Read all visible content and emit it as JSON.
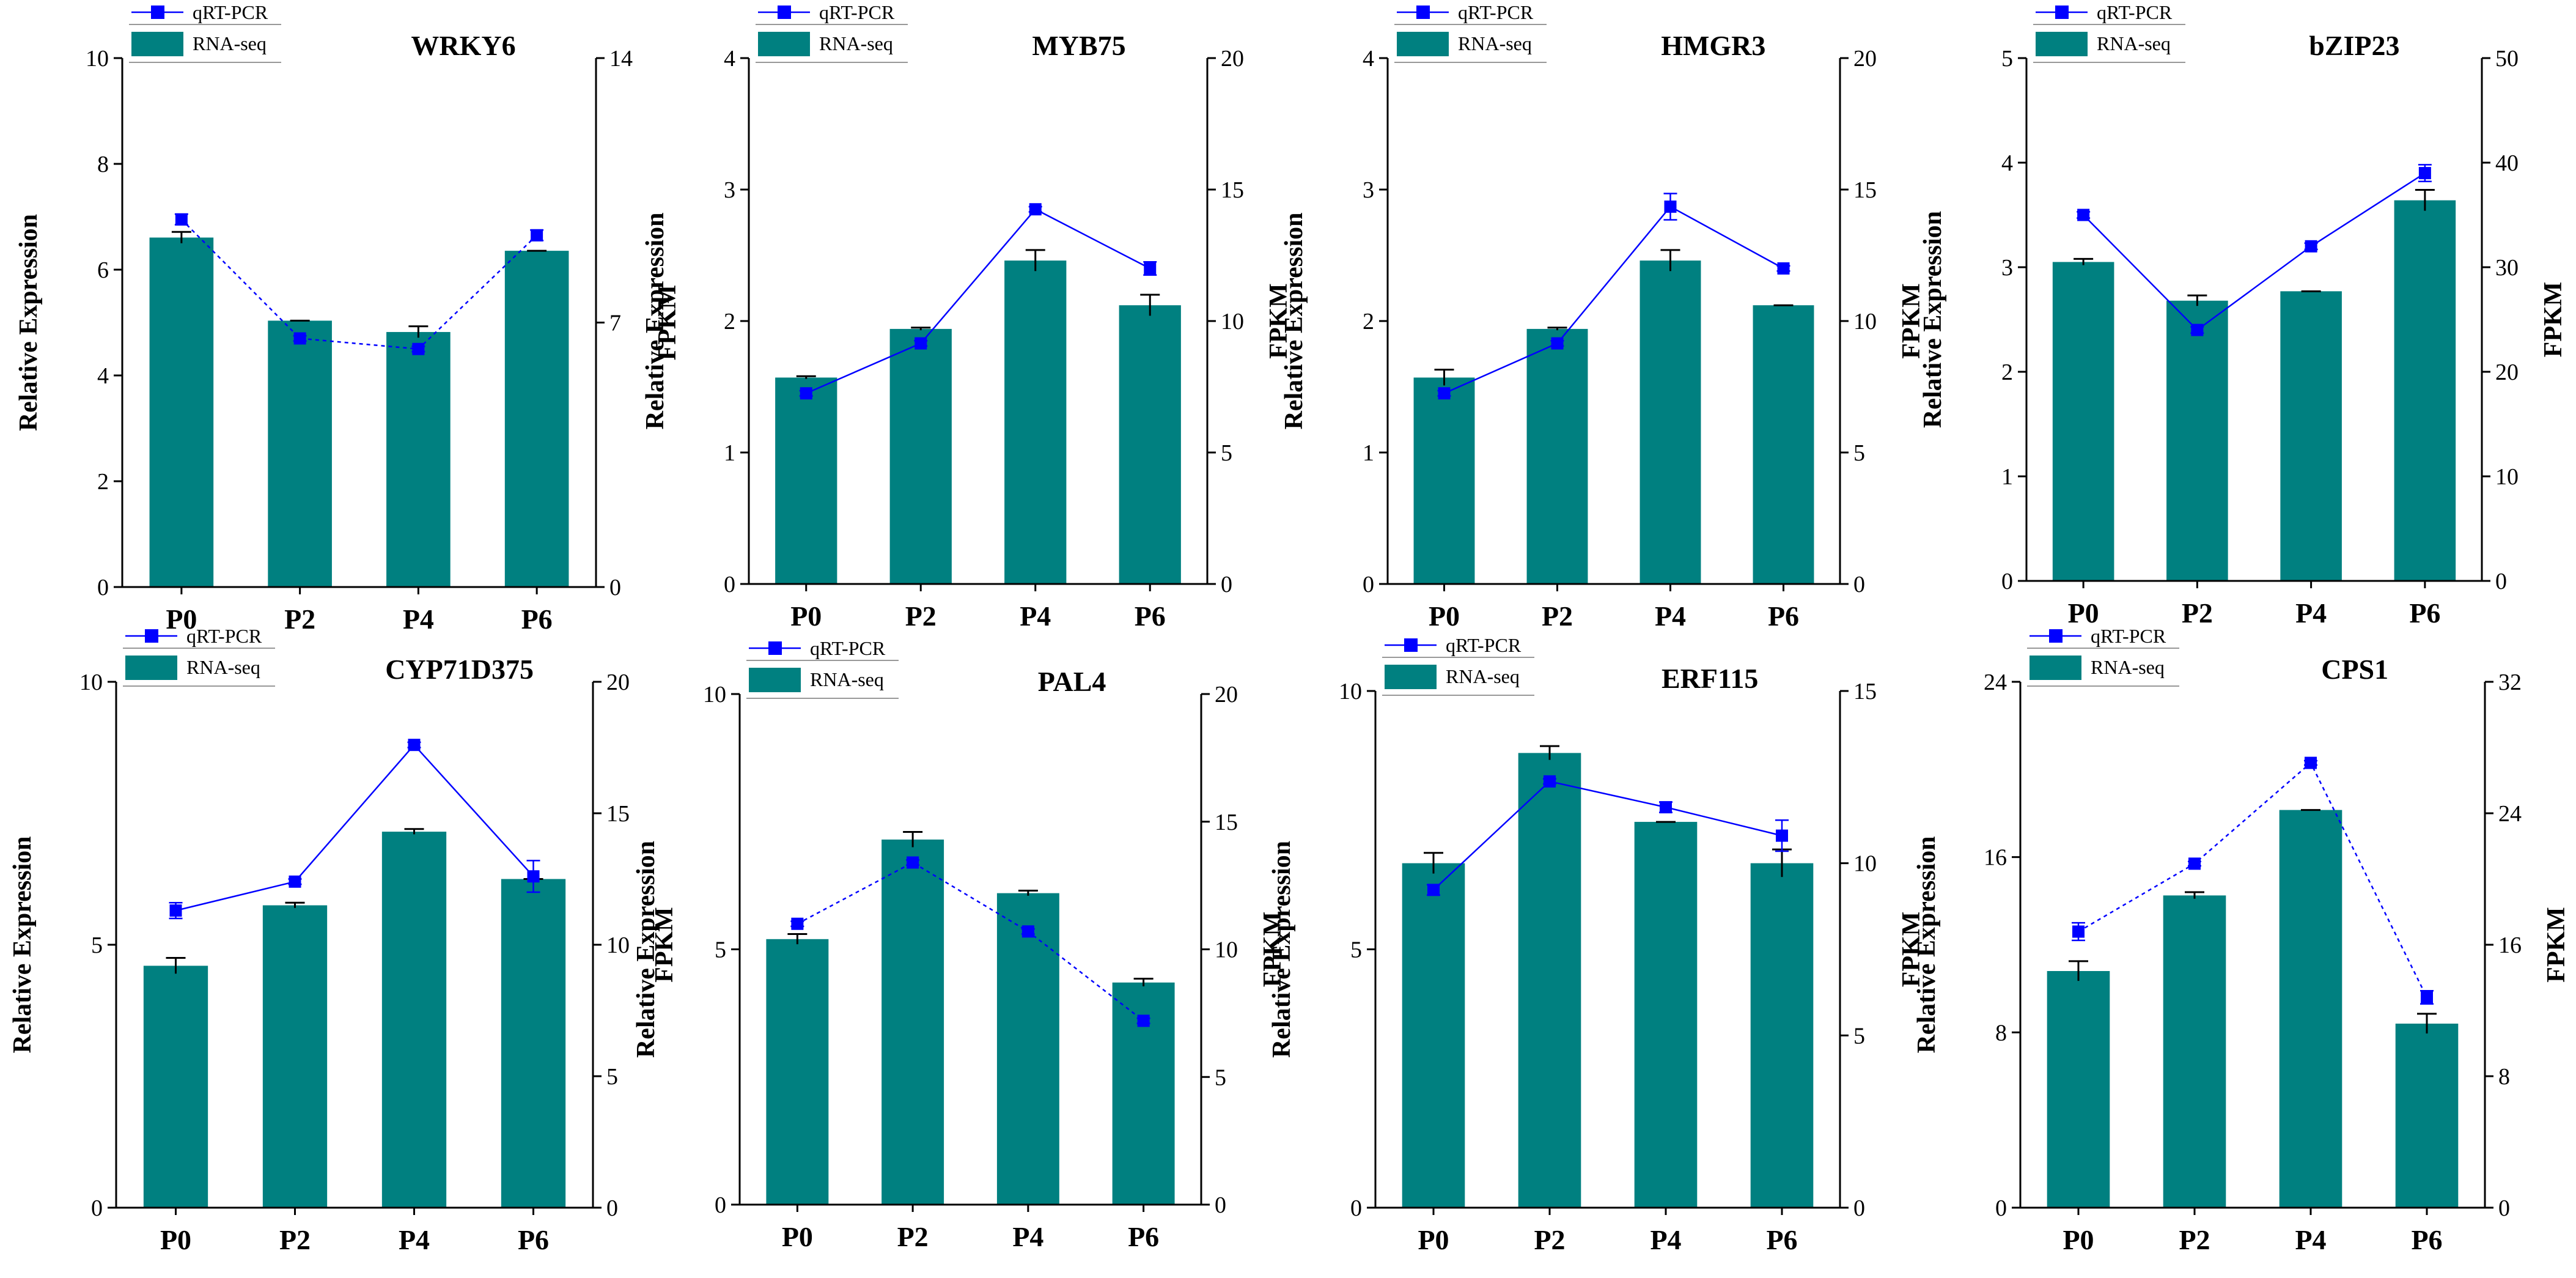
{
  "colors": {
    "bar": "#008080",
    "line": "#0000ff",
    "axis": "#000000",
    "error": "#000000"
  },
  "chart_data": [
    {
      "type": "bar+line",
      "title": "WRKY6",
      "categories": [
        "P0",
        "P2",
        "P4",
        "P6"
      ],
      "ylabel_left": "Relative Expression",
      "ylabel_right": "FPKM",
      "ylim_left": [
        0,
        10
      ],
      "yticks_left": [
        0,
        2,
        4,
        6,
        8,
        10
      ],
      "ytick_labels_left": [
        "0",
        "2",
        "4",
        "6",
        "8",
        "10"
      ],
      "ylim_right": [
        0,
        14
      ],
      "yticks_right": [
        0,
        7,
        14
      ],
      "ytick_labels_right": [
        "0",
        "7",
        "14"
      ],
      "legend": {
        "line": "qRT-PCR",
        "bar": "RNA-seq"
      },
      "bar_series": {
        "name": "RNA-seq",
        "axis": "right",
        "values": [
          9.25,
          7.05,
          6.75,
          8.9
        ],
        "errors": [
          0.15,
          0.0,
          0.15,
          0.0
        ]
      },
      "line_series": {
        "name": "qRT-PCR",
        "axis": "left",
        "values": [
          6.95,
          4.7,
          4.5,
          6.65
        ],
        "errors": [
          0.1,
          0.05,
          0.05,
          0.1
        ]
      },
      "line_dashed": true
    },
    {
      "type": "bar+line",
      "title": "MYB75",
      "categories": [
        "P0",
        "P2",
        "P4",
        "P6"
      ],
      "ylabel_left": "Relative Expression",
      "ylabel_right": "FPKM",
      "ylim_left": [
        0,
        4
      ],
      "yticks_left": [
        0,
        1,
        2,
        3,
        4
      ],
      "ytick_labels_left": [
        "0",
        "1",
        "2",
        "3",
        "4"
      ],
      "ylim_right": [
        0,
        20
      ],
      "yticks_right": [
        0,
        5,
        10,
        15,
        20
      ],
      "ytick_labels_right": [
        "0",
        "5",
        "10",
        "15",
        "20"
      ],
      "legend": {
        "line": "qRT-PCR",
        "bar": "RNA-seq"
      },
      "bar_series": {
        "name": "RNA-seq",
        "axis": "right",
        "values": [
          7.85,
          9.7,
          12.3,
          10.6
        ],
        "errors": [
          0.05,
          0.05,
          0.4,
          0.4
        ]
      },
      "line_series": {
        "name": "qRT-PCR",
        "axis": "left",
        "values": [
          1.45,
          1.83,
          2.85,
          2.4
        ],
        "errors": [
          0.02,
          0.02,
          0.02,
          0.05
        ]
      },
      "line_dashed": false
    },
    {
      "type": "bar+line",
      "title": "HMGR3",
      "categories": [
        "P0",
        "P2",
        "P4",
        "P6"
      ],
      "ylabel_left": "Relative Expression",
      "ylabel_right": "FPKM",
      "ylim_left": [
        0,
        4
      ],
      "yticks_left": [
        0,
        1,
        2,
        3,
        4
      ],
      "ytick_labels_left": [
        "0",
        "1",
        "2",
        "3",
        "4"
      ],
      "ylim_right": [
        0,
        20
      ],
      "yticks_right": [
        0,
        5,
        10,
        15,
        20
      ],
      "ytick_labels_right": [
        "0",
        "5",
        "10",
        "15",
        "20"
      ],
      "legend": {
        "line": "qRT-PCR",
        "bar": "RNA-seq"
      },
      "bar_series": {
        "name": "RNA-seq",
        "axis": "right",
        "values": [
          7.85,
          9.7,
          12.3,
          10.6
        ],
        "errors": [
          0.3,
          0.05,
          0.4,
          0.0
        ]
      },
      "line_series": {
        "name": "qRT-PCR",
        "axis": "left",
        "values": [
          1.45,
          1.83,
          2.87,
          2.4
        ],
        "errors": [
          0.02,
          0.02,
          0.1,
          0.02
        ]
      },
      "line_dashed": false
    },
    {
      "type": "bar+line",
      "title": "bZIP23",
      "categories": [
        "P0",
        "P2",
        "P4",
        "P6"
      ],
      "ylabel_left": "Relative Expression",
      "ylabel_right": "FPKM",
      "ylim_left": [
        0,
        5
      ],
      "yticks_left": [
        0,
        1,
        2,
        3,
        4,
        5
      ],
      "ytick_labels_left": [
        "0",
        "1",
        "2",
        "3",
        "4",
        "5"
      ],
      "ylim_right": [
        0,
        50
      ],
      "yticks_right": [
        0,
        10,
        20,
        30,
        40,
        50
      ],
      "ytick_labels_right": [
        "0",
        "10",
        "20",
        "30",
        "40",
        "50"
      ],
      "legend": {
        "line": "qRT-PCR",
        "bar": "RNA-seq"
      },
      "bar_series": {
        "name": "RNA-seq",
        "axis": "right",
        "values": [
          30.5,
          26.8,
          27.7,
          36.4
        ],
        "errors": [
          0.3,
          0.5,
          0.0,
          1.0
        ]
      },
      "line_series": {
        "name": "qRT-PCR",
        "axis": "left",
        "values": [
          3.5,
          2.4,
          3.2,
          3.9
        ],
        "errors": [
          0.03,
          0.03,
          0.03,
          0.08
        ]
      },
      "line_dashed": false
    },
    {
      "type": "bar+line",
      "title": "CYP71D375",
      "categories": [
        "P0",
        "P2",
        "P4",
        "P6"
      ],
      "ylabel_left": "Relative Expression",
      "ylabel_right": "FPKM",
      "ylim_left": [
        0,
        10
      ],
      "yticks_left": [
        0,
        5,
        10
      ],
      "ytick_labels_left": [
        "0",
        "5",
        "10"
      ],
      "ylim_right": [
        0,
        20
      ],
      "yticks_right": [
        0,
        5,
        10,
        15,
        20
      ],
      "ytick_labels_right": [
        "0",
        "5",
        "10",
        "15",
        "20"
      ],
      "legend": {
        "line": "qRT-PCR",
        "bar": "RNA-seq"
      },
      "bar_series": {
        "name": "RNA-seq",
        "axis": "right",
        "values": [
          9.2,
          11.5,
          14.3,
          12.5
        ],
        "errors": [
          0.3,
          0.1,
          0.1,
          0.0
        ]
      },
      "line_series": {
        "name": "qRT-PCR",
        "axis": "left",
        "values": [
          5.65,
          6.2,
          8.8,
          6.3
        ],
        "errors": [
          0.15,
          0.05,
          0.05,
          0.3
        ]
      },
      "line_dashed": false
    },
    {
      "type": "bar+line",
      "title": "PAL4",
      "categories": [
        "P0",
        "P2",
        "P4",
        "P6"
      ],
      "ylabel_left": "Relative Expression",
      "ylabel_right": "FPKM",
      "ylim_left": [
        0,
        10
      ],
      "yticks_left": [
        0,
        5,
        10
      ],
      "ytick_labels_left": [
        "0",
        "5",
        "10"
      ],
      "ylim_right": [
        0,
        20
      ],
      "yticks_right": [
        0,
        5,
        10,
        15,
        20
      ],
      "ytick_labels_right": [
        "0",
        "5",
        "10",
        "15",
        "20"
      ],
      "legend": {
        "line": "qRT-PCR",
        "bar": "RNA-seq"
      },
      "bar_series": {
        "name": "RNA-seq",
        "axis": "right",
        "values": [
          10.4,
          14.3,
          12.2,
          8.7
        ],
        "errors": [
          0.2,
          0.3,
          0.1,
          0.15
        ]
      },
      "line_series": {
        "name": "qRT-PCR",
        "axis": "left",
        "values": [
          5.5,
          6.7,
          5.35,
          3.6
        ],
        "errors": [
          0.05,
          0.05,
          0.05,
          0.05
        ]
      },
      "line_dashed": true
    },
    {
      "type": "bar+line",
      "title": "ERF115",
      "categories": [
        "P0",
        "P2",
        "P4",
        "P6"
      ],
      "ylabel_left": "Relative Expression",
      "ylabel_right": "FPKM",
      "ylim_left": [
        0,
        10
      ],
      "yticks_left": [
        0,
        5,
        10
      ],
      "ytick_labels_left": [
        "0",
        "5",
        "10"
      ],
      "ylim_right": [
        0,
        15
      ],
      "yticks_right": [
        0,
        5,
        10,
        15
      ],
      "ytick_labels_right": [
        "0",
        "5",
        "10",
        "15"
      ],
      "legend": {
        "line": "qRT-PCR",
        "bar": "RNA-seq"
      },
      "bar_series": {
        "name": "RNA-seq",
        "axis": "right",
        "values": [
          10.0,
          13.2,
          11.2,
          10.0
        ],
        "errors": [
          0.3,
          0.2,
          0.0,
          0.4
        ]
      },
      "line_series": {
        "name": "qRT-PCR",
        "axis": "left",
        "values": [
          6.15,
          8.25,
          7.75,
          7.2
        ],
        "errors": [
          0.1,
          0.05,
          0.1,
          0.3
        ]
      },
      "line_dashed": false
    },
    {
      "type": "bar+line",
      "title": "CPS1",
      "categories": [
        "P0",
        "P2",
        "P4",
        "P6"
      ],
      "ylabel_left": "Relative Expression",
      "ylabel_right": "FPKM",
      "ylim_left": [
        0,
        24
      ],
      "yticks_left": [
        0,
        8,
        16,
        24
      ],
      "ytick_labels_left": [
        "0",
        "8",
        "16",
        "24"
      ],
      "ylim_right": [
        0,
        32
      ],
      "yticks_right": [
        0,
        8,
        16,
        24,
        32
      ],
      "ytick_labels_right": [
        "0",
        "8",
        "16",
        "24",
        "32"
      ],
      "legend": {
        "line": "qRT-PCR",
        "bar": "RNA-seq"
      },
      "bar_series": {
        "name": "RNA-seq",
        "axis": "right",
        "values": [
          14.4,
          19.0,
          24.2,
          11.2
        ],
        "errors": [
          0.6,
          0.2,
          0.0,
          0.6
        ]
      },
      "line_series": {
        "name": "qRT-PCR",
        "axis": "left",
        "values": [
          12.6,
          15.7,
          20.3,
          9.6
        ],
        "errors": [
          0.4,
          0.1,
          0.1,
          0.3
        ]
      },
      "line_dashed": true
    }
  ]
}
